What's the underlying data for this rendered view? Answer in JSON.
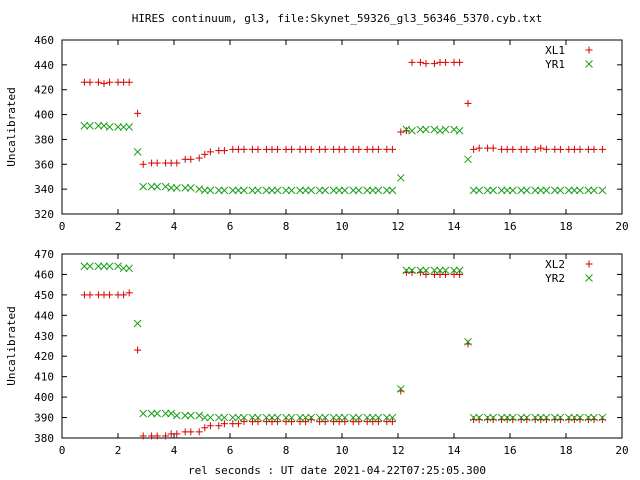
{
  "title": "HIRES continuum, gl3, file:Skynet_59326_gl3_56346_5370.cyb.txt",
  "xlabel": "rel seconds : UT date 2021-04-22T07:25:05.300",
  "chart_data": [
    {
      "type": "scatter",
      "ylabel": "Uncalibrated",
      "xlim": [
        0,
        20
      ],
      "ylim": [
        320,
        460
      ],
      "xticks": [
        0,
        2,
        4,
        6,
        8,
        10,
        12,
        14,
        16,
        18,
        20
      ],
      "yticks": [
        320,
        340,
        360,
        380,
        400,
        420,
        440,
        460
      ],
      "legend_position": "top-right",
      "x": [
        0.8,
        1.0,
        1.3,
        1.5,
        1.7,
        2.0,
        2.2,
        2.4,
        2.7,
        2.9,
        3.2,
        3.4,
        3.7,
        3.9,
        4.1,
        4.4,
        4.6,
        4.9,
        5.1,
        5.3,
        5.6,
        5.8,
        6.1,
        6.3,
        6.5,
        6.8,
        7.0,
        7.3,
        7.5,
        7.7,
        8.0,
        8.2,
        8.5,
        8.7,
        8.9,
        9.2,
        9.4,
        9.7,
        9.9,
        10.1,
        10.4,
        10.6,
        10.9,
        11.1,
        11.3,
        11.6,
        11.8,
        12.1,
        12.3,
        12.5,
        12.8,
        13.0,
        13.3,
        13.5,
        13.7,
        14.0,
        14.2,
        14.5,
        14.7,
        14.9,
        15.2,
        15.4,
        15.7,
        15.9,
        16.1,
        16.4,
        16.6,
        16.9,
        17.1,
        17.3,
        17.6,
        17.8,
        18.1,
        18.3,
        18.5,
        18.8,
        19.0,
        19.3
      ],
      "series": [
        {
          "name": "XL1",
          "marker": "plus",
          "color": "#d40000",
          "values": [
            426,
            426,
            426,
            425,
            426,
            426,
            426,
            426,
            401,
            360,
            361,
            361,
            361,
            361,
            361,
            364,
            364,
            365,
            368,
            370,
            371,
            371,
            372,
            372,
            372,
            372,
            372,
            372,
            372,
            372,
            372,
            372,
            372,
            372,
            372,
            372,
            372,
            372,
            372,
            372,
            372,
            372,
            372,
            372,
            372,
            372,
            372,
            386,
            387,
            442,
            442,
            441,
            441,
            442,
            442,
            442,
            442,
            409,
            372,
            373,
            373,
            373,
            372,
            372,
            372,
            372,
            372,
            372,
            373,
            372,
            372,
            372,
            372,
            372,
            372,
            372,
            372,
            372
          ]
        },
        {
          "name": "YR1",
          "marker": "cross",
          "color": "#19a019",
          "values": [
            391,
            391,
            391,
            391,
            390,
            390,
            390,
            390,
            370,
            342,
            342,
            342,
            342,
            341,
            341,
            341,
            341,
            340,
            339,
            339,
            339,
            339,
            339,
            339,
            339,
            339,
            339,
            339,
            339,
            339,
            339,
            339,
            339,
            339,
            339,
            339,
            339,
            339,
            339,
            339,
            339,
            339,
            339,
            339,
            339,
            339,
            339,
            349,
            388,
            387,
            388,
            388,
            388,
            387,
            388,
            388,
            387,
            364,
            339,
            339,
            339,
            339,
            339,
            339,
            339,
            339,
            339,
            339,
            339,
            339,
            339,
            339,
            339,
            339,
            339,
            339,
            339,
            339
          ]
        }
      ]
    },
    {
      "type": "scatter",
      "ylabel": "Uncalibrated",
      "xlim": [
        0,
        20
      ],
      "ylim": [
        380,
        470
      ],
      "xticks": [
        0,
        2,
        4,
        6,
        8,
        10,
        12,
        14,
        16,
        18,
        20
      ],
      "yticks": [
        380,
        390,
        400,
        410,
        420,
        430,
        440,
        450,
        460,
        470
      ],
      "legend_position": "top-right",
      "x": [
        0.8,
        1.0,
        1.3,
        1.5,
        1.7,
        2.0,
        2.2,
        2.4,
        2.7,
        2.9,
        3.2,
        3.4,
        3.7,
        3.9,
        4.1,
        4.4,
        4.6,
        4.9,
        5.1,
        5.3,
        5.6,
        5.8,
        6.1,
        6.3,
        6.5,
        6.8,
        7.0,
        7.3,
        7.5,
        7.7,
        8.0,
        8.2,
        8.5,
        8.7,
        8.9,
        9.2,
        9.4,
        9.7,
        9.9,
        10.1,
        10.4,
        10.6,
        10.9,
        11.1,
        11.3,
        11.6,
        11.8,
        12.1,
        12.3,
        12.5,
        12.8,
        13.0,
        13.3,
        13.5,
        13.7,
        14.0,
        14.2,
        14.5,
        14.7,
        14.9,
        15.2,
        15.4,
        15.7,
        15.9,
        16.1,
        16.4,
        16.6,
        16.9,
        17.1,
        17.3,
        17.6,
        17.8,
        18.1,
        18.3,
        18.5,
        18.8,
        19.0,
        19.3
      ],
      "series": [
        {
          "name": "XL2",
          "marker": "plus",
          "color": "#d40000",
          "values": [
            450,
            450,
            450,
            450,
            450,
            450,
            450,
            451,
            423,
            381,
            381,
            381,
            381,
            382,
            382,
            383,
            383,
            383,
            385,
            386,
            386,
            387,
            387,
            387,
            388,
            388,
            388,
            388,
            388,
            388,
            388,
            388,
            388,
            388,
            389,
            388,
            388,
            388,
            388,
            388,
            388,
            388,
            388,
            388,
            388,
            388,
            388,
            403,
            461,
            461,
            461,
            460,
            460,
            460,
            460,
            460,
            460,
            426,
            389,
            389,
            389,
            389,
            389,
            389,
            389,
            389,
            389,
            389,
            389,
            389,
            389,
            389,
            389,
            389,
            389,
            389,
            389,
            389
          ]
        },
        {
          "name": "YR2",
          "marker": "cross",
          "color": "#19a019",
          "values": [
            464,
            464,
            464,
            464,
            464,
            464,
            463,
            463,
            436,
            392,
            392,
            392,
            392,
            392,
            391,
            391,
            391,
            391,
            390,
            390,
            390,
            390,
            390,
            390,
            390,
            390,
            390,
            390,
            390,
            390,
            390,
            390,
            390,
            390,
            390,
            390,
            390,
            390,
            390,
            390,
            390,
            390,
            390,
            390,
            390,
            390,
            390,
            404,
            462,
            462,
            462,
            462,
            462,
            462,
            462,
            462,
            462,
            427,
            390,
            390,
            390,
            390,
            390,
            390,
            390,
            390,
            390,
            390,
            390,
            390,
            390,
            390,
            390,
            390,
            390,
            390,
            390,
            390
          ]
        }
      ]
    }
  ]
}
